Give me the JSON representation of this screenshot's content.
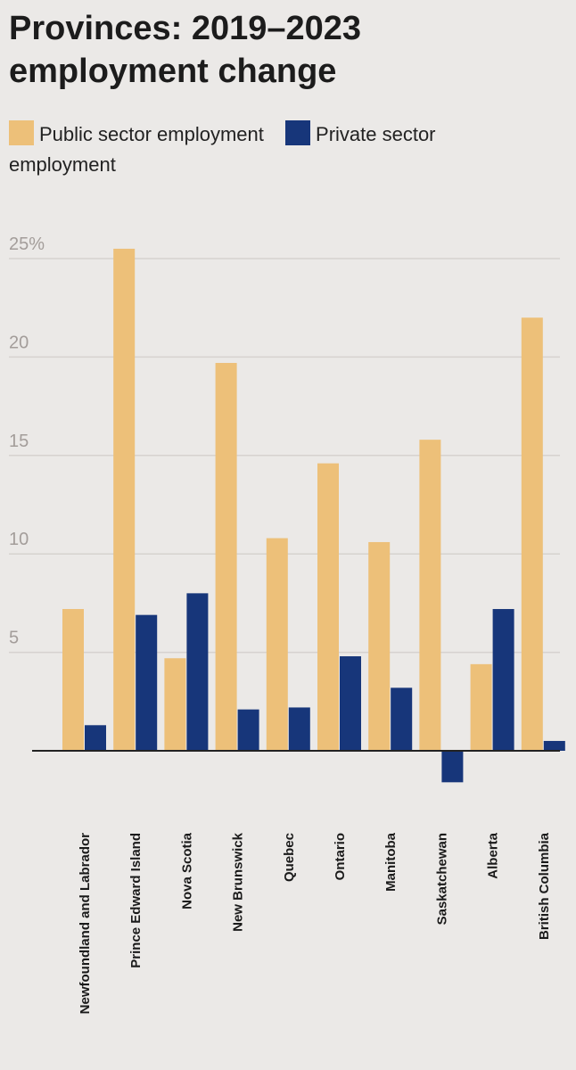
{
  "title": "Provinces: 2019–2023 employment change",
  "chart_data": {
    "type": "bar",
    "title": "Provinces: 2019–2023 employment change",
    "xlabel": "",
    "ylabel": "",
    "ylim": [
      -2,
      25
    ],
    "yticks": [
      5,
      10,
      15,
      20,
      25
    ],
    "ytick_labels": [
      "5",
      "10",
      "15",
      "20",
      "25%"
    ],
    "grid": true,
    "legend_position": "top",
    "categories": [
      "Newfoundland and Labrador",
      "Prince Edward Island",
      "Nova Scotia",
      "New Brunswick",
      "Quebec",
      "Ontario",
      "Manitoba",
      "Saskatchewan",
      "Alberta",
      "British Columbia"
    ],
    "series": [
      {
        "name": "Public sector employment",
        "color": "#edc079",
        "values": [
          7.2,
          25.5,
          4.7,
          19.7,
          10.8,
          14.6,
          10.6,
          15.8,
          4.4,
          22.0
        ]
      },
      {
        "name": "Private sector employment",
        "color": "#17367a",
        "values": [
          1.3,
          6.9,
          8.0,
          2.1,
          2.2,
          4.8,
          3.2,
          -1.6,
          7.2,
          0.5
        ]
      }
    ]
  }
}
